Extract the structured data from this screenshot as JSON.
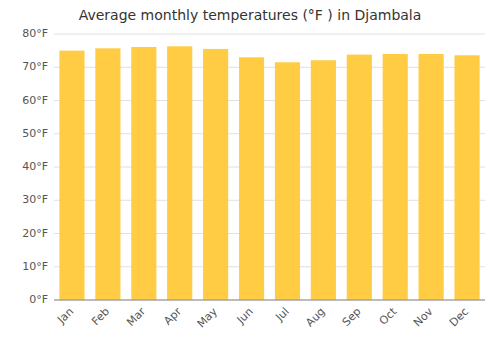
{
  "chart_data": {
    "type": "bar",
    "title": "Average monthly temperatures (°F ) in Djambala",
    "categories": [
      "Jan",
      "Feb",
      "Mar",
      "Apr",
      "May",
      "Jun",
      "Jul",
      "Aug",
      "Sep",
      "Oct",
      "Nov",
      "Dec"
    ],
    "values": [
      75.0,
      75.7,
      76.1,
      76.3,
      75.5,
      73.0,
      71.5,
      72.1,
      73.8,
      74.0,
      74.0,
      73.6
    ],
    "color": "#FFCC44",
    "ylim": [
      0,
      80
    ],
    "yticks": [
      {
        "value": 0,
        "label": "0°F"
      },
      {
        "value": 10,
        "label": "10°F"
      },
      {
        "value": 20,
        "label": "20°F"
      },
      {
        "value": 30,
        "label": "30°F"
      },
      {
        "value": 40,
        "label": "40°F"
      },
      {
        "value": 50,
        "label": "50°F"
      },
      {
        "value": 60,
        "label": "60°F"
      },
      {
        "value": 70,
        "label": "70°F"
      },
      {
        "value": 80,
        "label": "80°F"
      }
    ],
    "grid": true
  }
}
